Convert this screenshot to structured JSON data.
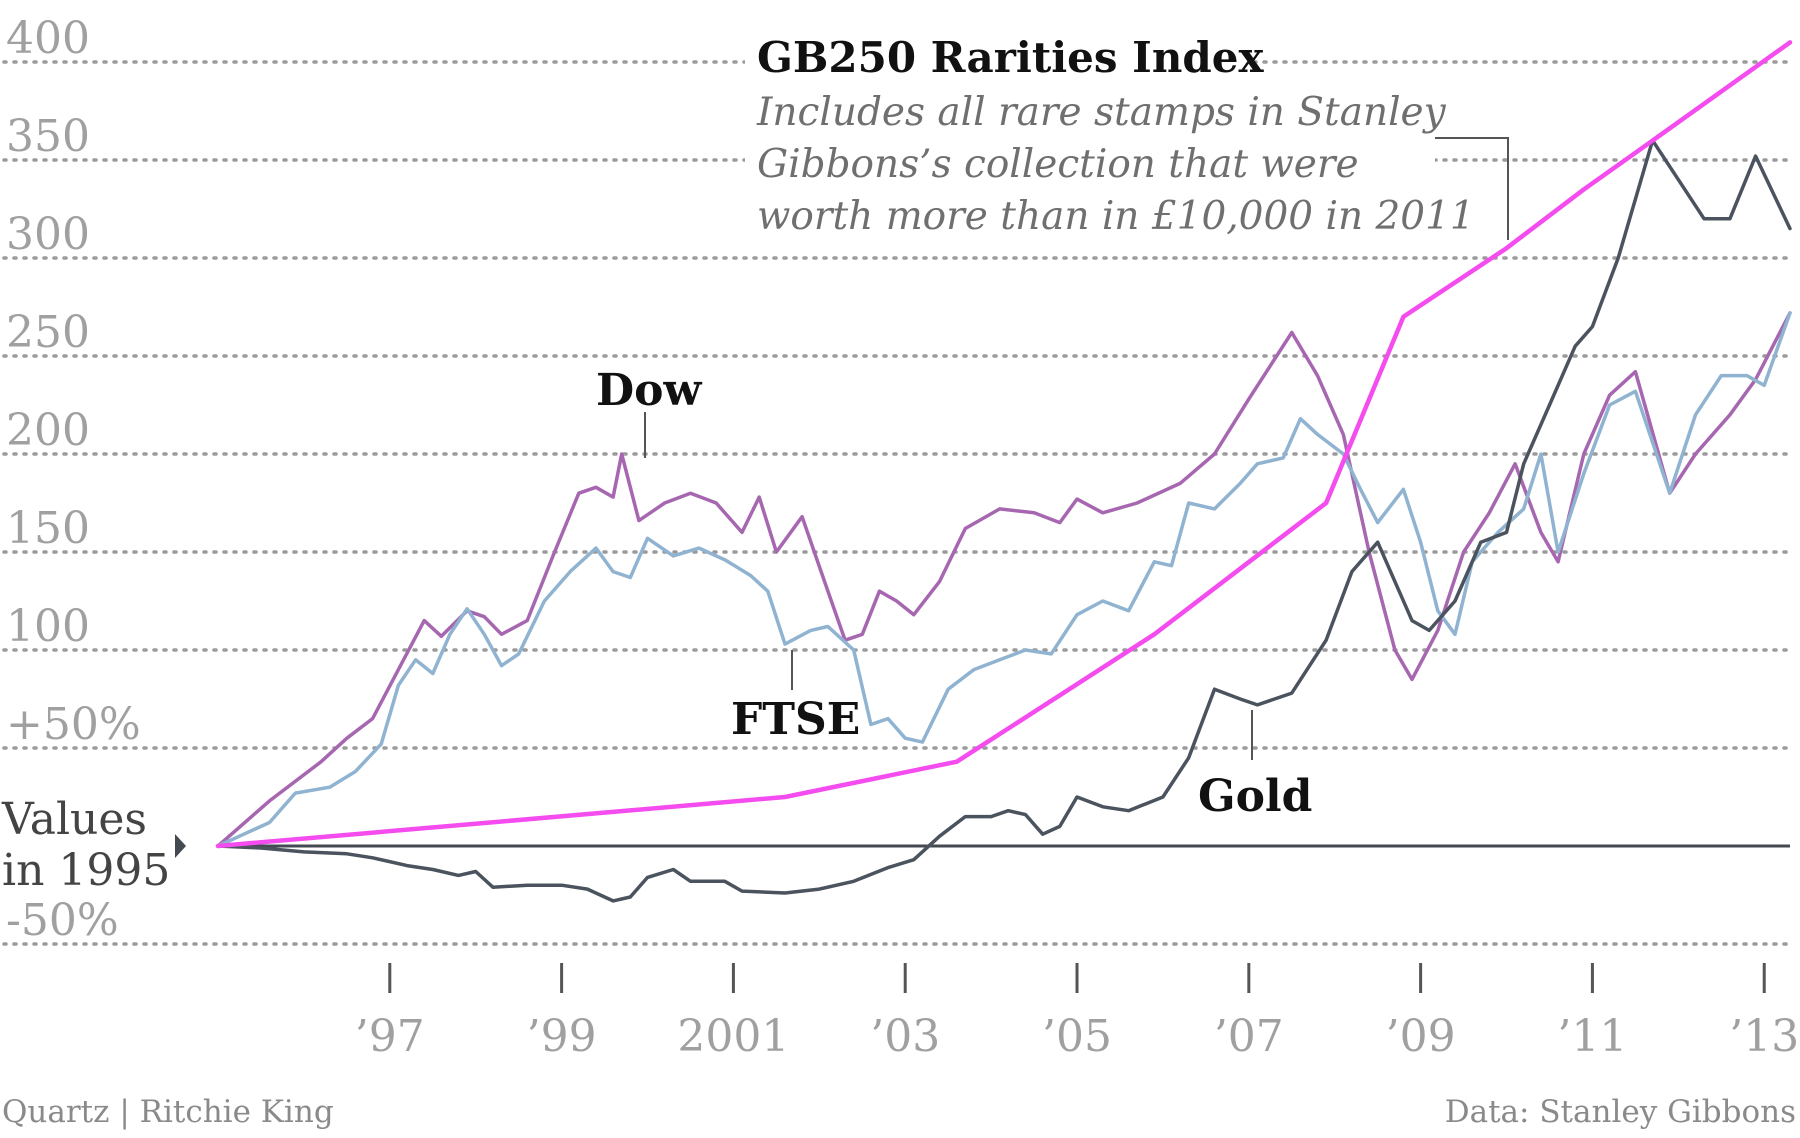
{
  "chart_data": {
    "type": "line",
    "title": "",
    "xlabel": "",
    "ylabel": "",
    "x_ticks": [
      {
        "x": 1997,
        "label": "’97"
      },
      {
        "x": 1999,
        "label": "’99"
      },
      {
        "x": 2001,
        "label": "2001"
      },
      {
        "x": 2003,
        "label": "’03"
      },
      {
        "x": 2005,
        "label": "’05"
      },
      {
        "x": 2007,
        "label": "’07"
      },
      {
        "x": 2009,
        "label": "’09"
      },
      {
        "x": 2011,
        "label": "’11"
      },
      {
        "x": 2013,
        "label": "’13"
      }
    ],
    "y_ticks": [
      {
        "y": 400,
        "label": "400"
      },
      {
        "y": 350,
        "label": "350"
      },
      {
        "y": 300,
        "label": "300"
      },
      {
        "y": 250,
        "label": "250"
      },
      {
        "y": 200,
        "label": "200"
      },
      {
        "y": 150,
        "label": "150"
      },
      {
        "y": 100,
        "label": "100"
      },
      {
        "y": 50,
        "label": "+50%"
      },
      {
        "y": -50,
        "label": "-50%"
      }
    ],
    "xlim": [
      1995,
      2013.3
    ],
    "ylim": [
      -70,
      410
    ],
    "baseline_label": [
      "Values",
      "in 1995"
    ],
    "grid": true,
    "series": [
      {
        "name": "Dow",
        "color": "#a667b0",
        "points": [
          [
            1995,
            0
          ],
          [
            1995.6,
            23
          ],
          [
            1996.2,
            43
          ],
          [
            1996.5,
            55
          ],
          [
            1996.8,
            65
          ],
          [
            1997.1,
            90
          ],
          [
            1997.4,
            115
          ],
          [
            1997.6,
            107
          ],
          [
            1997.9,
            120
          ],
          [
            1998.1,
            117
          ],
          [
            1998.3,
            108
          ],
          [
            1998.6,
            115
          ],
          [
            1998.9,
            148
          ],
          [
            1999.2,
            180
          ],
          [
            1999.4,
            183
          ],
          [
            1999.6,
            178
          ],
          [
            1999.7,
            200
          ],
          [
            1999.9,
            166
          ],
          [
            2000.2,
            175
          ],
          [
            2000.5,
            180
          ],
          [
            2000.8,
            175
          ],
          [
            2001.1,
            160
          ],
          [
            2001.3,
            178
          ],
          [
            2001.5,
            150
          ],
          [
            2001.8,
            168
          ],
          [
            2002.1,
            130
          ],
          [
            2002.3,
            105
          ],
          [
            2002.5,
            108
          ],
          [
            2002.7,
            130
          ],
          [
            2002.9,
            125
          ],
          [
            2003.1,
            118
          ],
          [
            2003.4,
            135
          ],
          [
            2003.7,
            162
          ],
          [
            2004.1,
            172
          ],
          [
            2004.5,
            170
          ],
          [
            2004.8,
            165
          ],
          [
            2005.0,
            177
          ],
          [
            2005.3,
            170
          ],
          [
            2005.7,
            175
          ],
          [
            2006.2,
            185
          ],
          [
            2006.6,
            200
          ],
          [
            2007.0,
            228
          ],
          [
            2007.5,
            262
          ],
          [
            2007.8,
            240
          ],
          [
            2008.1,
            210
          ],
          [
            2008.4,
            150
          ],
          [
            2008.7,
            100
          ],
          [
            2008.9,
            85
          ],
          [
            2009.2,
            110
          ],
          [
            2009.5,
            150
          ],
          [
            2009.8,
            170
          ],
          [
            2010.1,
            195
          ],
          [
            2010.4,
            160
          ],
          [
            2010.6,
            145
          ],
          [
            2010.9,
            200
          ],
          [
            2011.2,
            230
          ],
          [
            2011.5,
            242
          ],
          [
            2011.9,
            180
          ],
          [
            2012.2,
            200
          ],
          [
            2012.6,
            220
          ],
          [
            2012.9,
            238
          ],
          [
            2013.3,
            272
          ]
        ]
      },
      {
        "name": "FTSE",
        "color": "#8fb3d0",
        "points": [
          [
            1995,
            0
          ],
          [
            1995.3,
            6
          ],
          [
            1995.6,
            12
          ],
          [
            1995.9,
            27
          ],
          [
            1996.3,
            30
          ],
          [
            1996.6,
            38
          ],
          [
            1996.9,
            52
          ],
          [
            1997.1,
            82
          ],
          [
            1997.3,
            95
          ],
          [
            1997.5,
            88
          ],
          [
            1997.7,
            108
          ],
          [
            1997.9,
            121
          ],
          [
            1998.1,
            108
          ],
          [
            1998.3,
            92
          ],
          [
            1998.5,
            98
          ],
          [
            1998.8,
            125
          ],
          [
            1999.1,
            140
          ],
          [
            1999.4,
            152
          ],
          [
            1999.6,
            140
          ],
          [
            1999.8,
            137
          ],
          [
            2000.0,
            157
          ],
          [
            2000.3,
            148
          ],
          [
            2000.6,
            152
          ],
          [
            2000.9,
            146
          ],
          [
            2001.2,
            138
          ],
          [
            2001.4,
            130
          ],
          [
            2001.6,
            103
          ],
          [
            2001.9,
            110
          ],
          [
            2002.1,
            112
          ],
          [
            2002.4,
            100
          ],
          [
            2002.6,
            62
          ],
          [
            2002.8,
            65
          ],
          [
            2003.0,
            55
          ],
          [
            2003.2,
            53
          ],
          [
            2003.5,
            80
          ],
          [
            2003.8,
            90
          ],
          [
            2004.1,
            95
          ],
          [
            2004.4,
            100
          ],
          [
            2004.7,
            98
          ],
          [
            2005.0,
            118
          ],
          [
            2005.3,
            125
          ],
          [
            2005.6,
            120
          ],
          [
            2005.9,
            145
          ],
          [
            2006.1,
            143
          ],
          [
            2006.3,
            175
          ],
          [
            2006.6,
            172
          ],
          [
            2006.9,
            185
          ],
          [
            2007.1,
            195
          ],
          [
            2007.4,
            198
          ],
          [
            2007.6,
            218
          ],
          [
            2007.8,
            210
          ],
          [
            2008.1,
            200
          ],
          [
            2008.3,
            182
          ],
          [
            2008.5,
            165
          ],
          [
            2008.8,
            182
          ],
          [
            2009.0,
            155
          ],
          [
            2009.2,
            120
          ],
          [
            2009.4,
            108
          ],
          [
            2009.6,
            145
          ],
          [
            2009.9,
            160
          ],
          [
            2010.2,
            172
          ],
          [
            2010.4,
            200
          ],
          [
            2010.6,
            150
          ],
          [
            2010.9,
            190
          ],
          [
            2011.2,
            225
          ],
          [
            2011.5,
            232
          ],
          [
            2011.9,
            180
          ],
          [
            2012.2,
            220
          ],
          [
            2012.5,
            240
          ],
          [
            2012.8,
            240
          ],
          [
            2013.0,
            235
          ],
          [
            2013.3,
            272
          ]
        ]
      },
      {
        "name": "Gold",
        "color": "#4a535e",
        "points": [
          [
            1995,
            0
          ],
          [
            1995.5,
            -1
          ],
          [
            1996,
            -3
          ],
          [
            1996.5,
            -4
          ],
          [
            1996.8,
            -6
          ],
          [
            1997.2,
            -10
          ],
          [
            1997.5,
            -12
          ],
          [
            1997.8,
            -15
          ],
          [
            1998.0,
            -13
          ],
          [
            1998.2,
            -21
          ],
          [
            1998.6,
            -20
          ],
          [
            1999.0,
            -20
          ],
          [
            1999.3,
            -22
          ],
          [
            1999.6,
            -28
          ],
          [
            1999.8,
            -26
          ],
          [
            2000.0,
            -16
          ],
          [
            2000.3,
            -12
          ],
          [
            2000.5,
            -18
          ],
          [
            2000.9,
            -18
          ],
          [
            2001.1,
            -23
          ],
          [
            2001.6,
            -24
          ],
          [
            2002.0,
            -22
          ],
          [
            2002.4,
            -18
          ],
          [
            2002.8,
            -11
          ],
          [
            2003.1,
            -7
          ],
          [
            2003.4,
            5
          ],
          [
            2003.7,
            15
          ],
          [
            2004.0,
            15
          ],
          [
            2004.2,
            18
          ],
          [
            2004.4,
            16
          ],
          [
            2004.6,
            6
          ],
          [
            2004.8,
            10
          ],
          [
            2005.0,
            25
          ],
          [
            2005.3,
            20
          ],
          [
            2005.6,
            18
          ],
          [
            2006.0,
            25
          ],
          [
            2006.3,
            45
          ],
          [
            2006.6,
            80
          ],
          [
            2006.9,
            75
          ],
          [
            2007.1,
            72
          ],
          [
            2007.5,
            78
          ],
          [
            2007.9,
            105
          ],
          [
            2008.2,
            140
          ],
          [
            2008.5,
            155
          ],
          [
            2008.9,
            115
          ],
          [
            2009.1,
            110
          ],
          [
            2009.4,
            125
          ],
          [
            2009.7,
            155
          ],
          [
            2010.0,
            160
          ],
          [
            2010.2,
            195
          ],
          [
            2010.5,
            225
          ],
          [
            2010.8,
            255
          ],
          [
            2011.0,
            265
          ],
          [
            2011.3,
            300
          ],
          [
            2011.7,
            360
          ],
          [
            2012.0,
            340
          ],
          [
            2012.3,
            320
          ],
          [
            2012.6,
            320
          ],
          [
            2012.9,
            352
          ],
          [
            2013.3,
            315
          ]
        ]
      },
      {
        "name": "GB250 Rarities Index",
        "color": "#f44cee",
        "points": [
          [
            1995,
            0
          ],
          [
            2001.6,
            25
          ],
          [
            2003.6,
            43
          ],
          [
            2005.9,
            108
          ],
          [
            2007.9,
            175
          ],
          [
            2008.8,
            270
          ],
          [
            2010.0,
            305
          ],
          [
            2010.9,
            335
          ],
          [
            2011.8,
            363
          ],
          [
            2013.3,
            410
          ]
        ]
      }
    ],
    "series_labels": [
      {
        "series": "Dow",
        "text": "Dow"
      },
      {
        "series": "FTSE",
        "text": "FTSE"
      },
      {
        "series": "Gold",
        "text": "Gold"
      }
    ],
    "annotation": {
      "title": "GB250 Rarities Index",
      "lines": [
        "Includes all rare stamps in Stanley",
        "Gibbons’s collection that were",
        "worth more than in £10,000 in 2011"
      ]
    },
    "footer_left": "Quartz | Ritchie King",
    "footer_right": "Data: Stanley Gibbons"
  }
}
